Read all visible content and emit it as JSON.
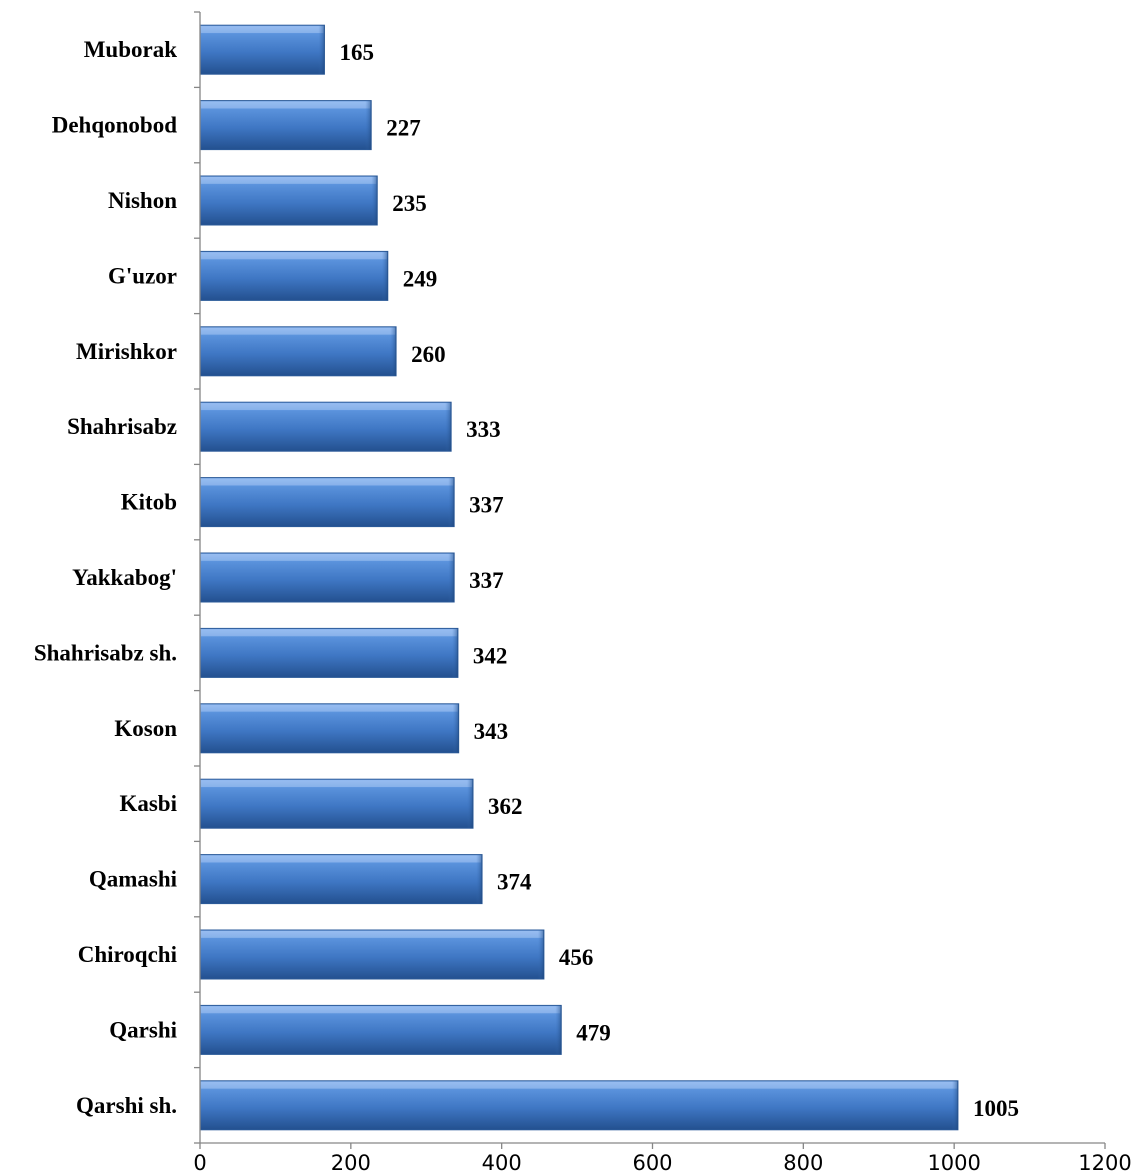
{
  "chart_data": {
    "type": "bar",
    "orientation": "horizontal",
    "categories": [
      "Muborak",
      "Dehqonobod",
      "Nishon",
      "G'uzor",
      "Mirishkor",
      "Shahrisabz",
      "Kitob",
      "Yakkabog'",
      "Shahrisabz sh.",
      "Koson",
      "Kasbi",
      "Qamashi",
      "Chiroqchi",
      "Qarshi",
      "Qarshi sh."
    ],
    "values": [
      165,
      227,
      235,
      249,
      260,
      333,
      337,
      337,
      342,
      343,
      362,
      374,
      456,
      479,
      1005
    ],
    "value_labels": [
      "165",
      "227",
      "235",
      "249",
      "260",
      "333",
      "337",
      "337",
      "342",
      "343",
      "362",
      "374",
      "456",
      "479",
      "1005"
    ],
    "x_ticks": [
      0,
      200,
      400,
      600,
      800,
      1000,
      1200
    ],
    "x_tick_labels": [
      "0",
      "200",
      "400",
      "600",
      "800",
      "1000",
      "1200"
    ],
    "xlim": [
      0,
      1200
    ],
    "title": "",
    "xlabel": "",
    "ylabel": "",
    "grid": false,
    "legend": "none",
    "bar_color": "#4a7ec4"
  }
}
